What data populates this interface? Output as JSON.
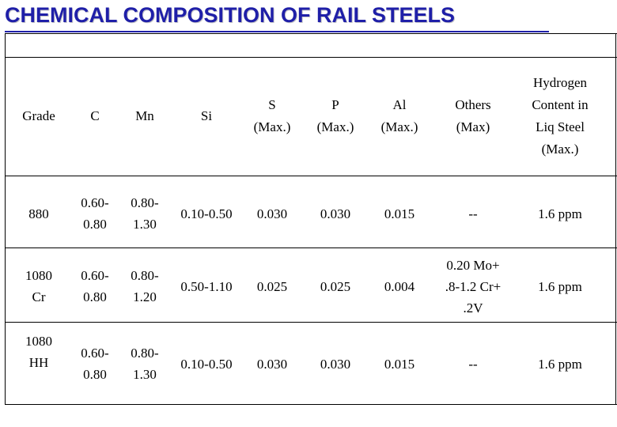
{
  "title": "CHEMICAL COMPOSITION OF RAIL STEELS",
  "headers": {
    "grade": "Grade",
    "c": "C",
    "mn": "Mn",
    "si": "Si",
    "s": "S\n(Max.)",
    "p": "P\n(Max.)",
    "al": "Al\n(Max.)",
    "others": "Others\n(Max)",
    "hydrogen": "Hydrogen\nContent in\nLiq Steel\n(Max.)"
  },
  "rows": [
    {
      "grade": "880",
      "c": "0.60-\n0.80",
      "mn": "0.80-\n1.30",
      "si": "0.10-0.50",
      "s": "0.030",
      "p": "0.030",
      "al": "0.015",
      "others": "--",
      "hydrogen": "1.6 ppm"
    },
    {
      "grade": "1080\nCr",
      "c": "0.60-\n0.80",
      "mn": "0.80-\n1.20",
      "si": "0.50-1.10",
      "s": "0.025",
      "p": "0.025",
      "al": "0.004",
      "others": "0.20 Mo+\n.8-1.2 Cr+\n.2V",
      "hydrogen": "1.6 ppm"
    },
    {
      "grade": "1080\nHH",
      "c": "0.60-\n0.80",
      "mn": "0.80-\n1.30",
      "si": "0.10-0.50",
      "s": "0.030",
      "p": "0.030",
      "al": "0.015",
      "others": "--",
      "hydrogen": "1.6 ppm"
    }
  ]
}
